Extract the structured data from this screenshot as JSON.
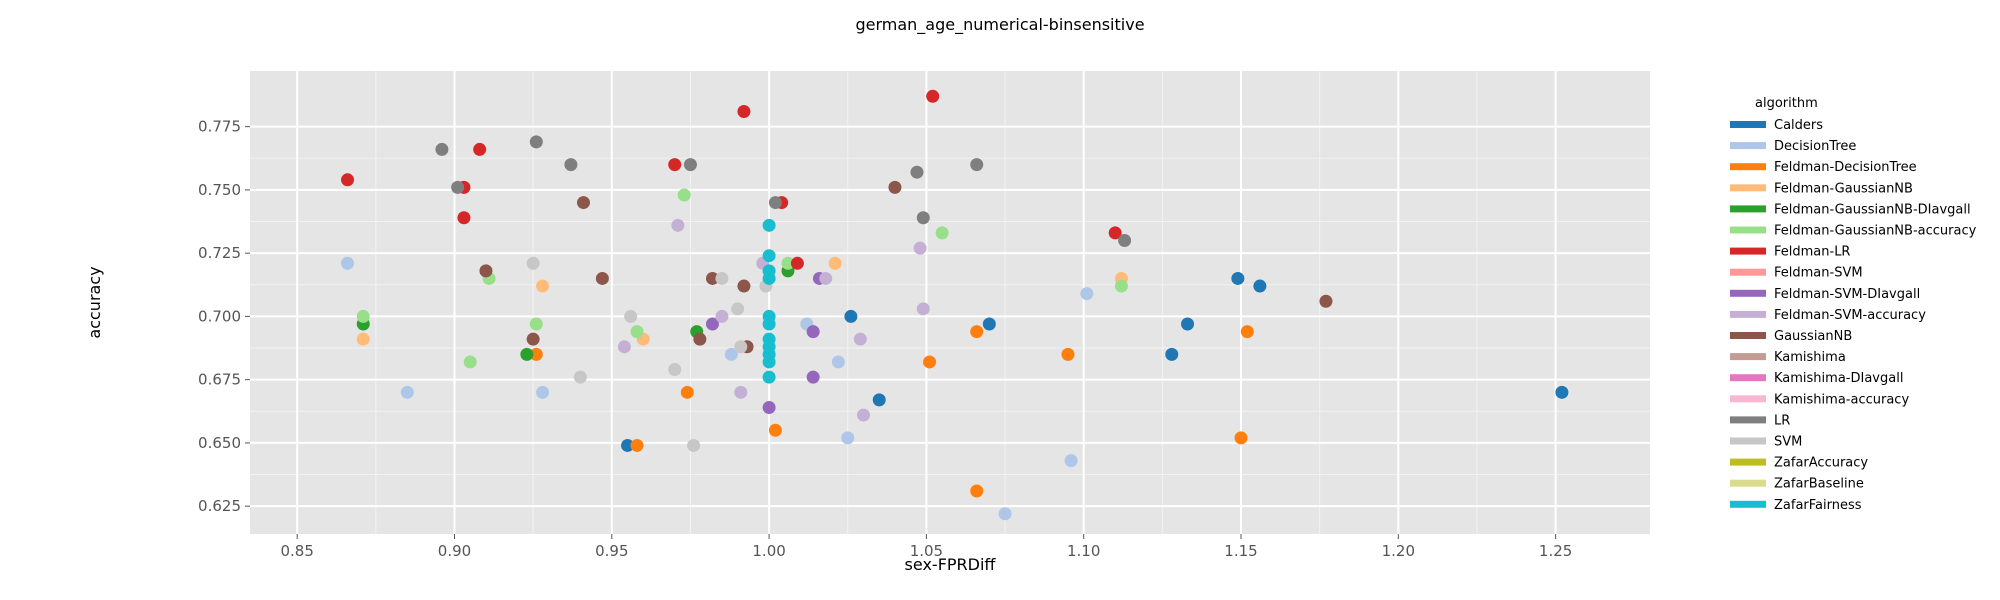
{
  "chart_data": {
    "type": "scatter",
    "title": "german_age_numerical-binsensitive",
    "xlabel": "sex-FPRDiff",
    "ylabel": "accuracy",
    "xlim": [
      0.835,
      1.28
    ],
    "ylim": [
      0.614,
      0.797
    ],
    "x_ticks": [
      0.85,
      0.9,
      0.95,
      1.0,
      1.05,
      1.1,
      1.15,
      1.2,
      1.25
    ],
    "x_tick_labels": [
      "0.85",
      "0.90",
      "0.95",
      "1.00",
      "1.05",
      "1.10",
      "1.15",
      "1.20",
      "1.25"
    ],
    "y_ticks": [
      0.625,
      0.65,
      0.675,
      0.7,
      0.725,
      0.75,
      0.775
    ],
    "y_tick_labels": [
      "0.625",
      "0.650",
      "0.675",
      "0.700",
      "0.725",
      "0.750",
      "0.775"
    ],
    "grid": true,
    "legend_title": "algorithm",
    "legend_position": "right",
    "series": [
      {
        "name": "Calders",
        "color": "#1f77b4",
        "points": [
          [
            1.252,
            0.67
          ],
          [
            1.156,
            0.712
          ],
          [
            1.149,
            0.715
          ],
          [
            1.133,
            0.697
          ],
          [
            1.128,
            0.685
          ],
          [
            1.07,
            0.697
          ],
          [
            1.026,
            0.7
          ],
          [
            1.035,
            0.667
          ],
          [
            0.955,
            0.649
          ]
        ]
      },
      {
        "name": "DecisionTree",
        "color": "#aec7e8",
        "points": [
          [
            0.866,
            0.721
          ],
          [
            0.885,
            0.67
          ],
          [
            0.928,
            0.67
          ],
          [
            0.988,
            0.685
          ],
          [
            1.012,
            0.697
          ],
          [
            1.022,
            0.682
          ],
          [
            1.025,
            0.652
          ],
          [
            1.075,
            0.622
          ],
          [
            1.096,
            0.643
          ],
          [
            1.101,
            0.709
          ]
        ]
      },
      {
        "name": "Feldman-DecisionTree",
        "color": "#ff7f0e",
        "points": [
          [
            0.926,
            0.685
          ],
          [
            0.958,
            0.649
          ],
          [
            0.974,
            0.67
          ],
          [
            1.002,
            0.655
          ],
          [
            1.051,
            0.682
          ],
          [
            1.066,
            0.694
          ],
          [
            1.066,
            0.631
          ],
          [
            1.095,
            0.685
          ],
          [
            1.15,
            0.652
          ],
          [
            1.152,
            0.694
          ]
        ]
      },
      {
        "name": "Feldman-GaussianNB",
        "color": "#ffbb78",
        "points": [
          [
            0.871,
            0.691
          ],
          [
            0.928,
            0.712
          ],
          [
            0.96,
            0.691
          ],
          [
            1.021,
            0.721
          ],
          [
            1.112,
            0.715
          ]
        ]
      },
      {
        "name": "Feldman-GaussianNB-DIavgall",
        "color": "#2ca02c",
        "points": [
          [
            0.871,
            0.697
          ],
          [
            0.923,
            0.685
          ],
          [
            0.977,
            0.694
          ],
          [
            1.006,
            0.718
          ]
        ]
      },
      {
        "name": "Feldman-GaussianNB-accuracy",
        "color": "#98df8a",
        "points": [
          [
            0.871,
            0.7
          ],
          [
            0.905,
            0.682
          ],
          [
            0.911,
            0.715
          ],
          [
            0.926,
            0.697
          ],
          [
            0.958,
            0.694
          ],
          [
            0.973,
            0.748
          ],
          [
            1.006,
            0.721
          ],
          [
            1.055,
            0.733
          ],
          [
            1.112,
            0.712
          ]
        ]
      },
      {
        "name": "Feldman-LR",
        "color": "#d62728",
        "points": [
          [
            0.866,
            0.754
          ],
          [
            0.903,
            0.751
          ],
          [
            0.903,
            0.739
          ],
          [
            0.908,
            0.766
          ],
          [
            0.97,
            0.76
          ],
          [
            0.992,
            0.781
          ],
          [
            1.004,
            0.745
          ],
          [
            1.009,
            0.721
          ],
          [
            1.052,
            0.787
          ],
          [
            1.11,
            0.733
          ]
        ]
      },
      {
        "name": "Feldman-SVM",
        "color": "#ff9896",
        "points": []
      },
      {
        "name": "Feldman-SVM-DIavgall",
        "color": "#9467bd",
        "points": [
          [
            0.982,
            0.697
          ],
          [
            1.0,
            0.664
          ],
          [
            1.014,
            0.694
          ],
          [
            1.014,
            0.676
          ],
          [
            1.016,
            0.715
          ]
        ]
      },
      {
        "name": "Feldman-SVM-accuracy",
        "color": "#c5b0d5",
        "points": [
          [
            0.954,
            0.688
          ],
          [
            0.971,
            0.736
          ],
          [
            0.985,
            0.7
          ],
          [
            0.991,
            0.67
          ],
          [
            0.998,
            0.721
          ],
          [
            1.018,
            0.715
          ],
          [
            1.029,
            0.691
          ],
          [
            1.03,
            0.661
          ],
          [
            1.048,
            0.727
          ],
          [
            1.049,
            0.703
          ]
        ]
      },
      {
        "name": "GaussianNB",
        "color": "#8c564b",
        "points": [
          [
            0.91,
            0.718
          ],
          [
            0.925,
            0.691
          ],
          [
            0.941,
            0.745
          ],
          [
            0.947,
            0.715
          ],
          [
            0.978,
            0.691
          ],
          [
            0.982,
            0.715
          ],
          [
            0.992,
            0.712
          ],
          [
            0.993,
            0.688
          ],
          [
            1.04,
            0.751
          ],
          [
            1.177,
            0.706
          ]
        ]
      },
      {
        "name": "Kamishima",
        "color": "#c49c94",
        "points": []
      },
      {
        "name": "Kamishima-DIavgall",
        "color": "#e377c2",
        "points": []
      },
      {
        "name": "Kamishima-accuracy",
        "color": "#f7b6d2",
        "points": []
      },
      {
        "name": "LR",
        "color": "#7f7f7f",
        "points": [
          [
            0.896,
            0.766
          ],
          [
            0.901,
            0.751
          ],
          [
            0.926,
            0.769
          ],
          [
            0.937,
            0.76
          ],
          [
            0.975,
            0.76
          ],
          [
            1.002,
            0.745
          ],
          [
            1.047,
            0.757
          ],
          [
            1.049,
            0.739
          ],
          [
            1.066,
            0.76
          ],
          [
            1.113,
            0.73
          ]
        ]
      },
      {
        "name": "SVM",
        "color": "#c7c7c7",
        "points": [
          [
            0.925,
            0.721
          ],
          [
            0.94,
            0.676
          ],
          [
            0.956,
            0.7
          ],
          [
            0.97,
            0.679
          ],
          [
            0.976,
            0.649
          ],
          [
            0.985,
            0.715
          ],
          [
            0.99,
            0.703
          ],
          [
            0.991,
            0.688
          ],
          [
            0.999,
            0.712
          ]
        ]
      },
      {
        "name": "ZafarAccuracy",
        "color": "#bcbd22",
        "points": []
      },
      {
        "name": "ZafarBaseline",
        "color": "#dbdb8d",
        "points": []
      },
      {
        "name": "ZafarFairness",
        "color": "#17becf",
        "points": [
          [
            1.0,
            0.736
          ],
          [
            1.0,
            0.724
          ],
          [
            1.0,
            0.718
          ],
          [
            1.0,
            0.715
          ],
          [
            1.0,
            0.7
          ],
          [
            1.0,
            0.697
          ],
          [
            1.0,
            0.691
          ],
          [
            1.0,
            0.688
          ],
          [
            1.0,
            0.685
          ],
          [
            1.0,
            0.682
          ],
          [
            1.0,
            0.676
          ]
        ]
      }
    ]
  }
}
